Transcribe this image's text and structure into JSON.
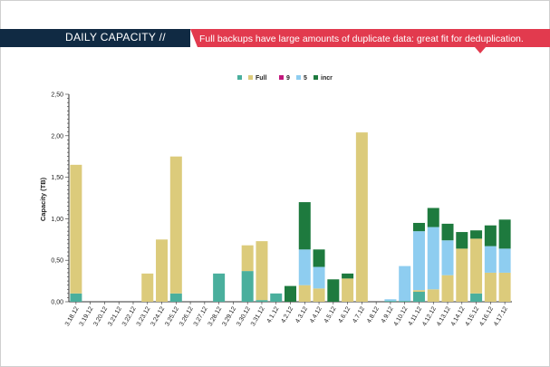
{
  "header": {
    "title": "DAILY CAPACITY //",
    "tagline": "Full backups have large amounts of duplicate data: great fit for deduplication."
  },
  "chart_data": {
    "type": "bar",
    "stacked": true,
    "ylabel": "Capacity (TB)",
    "xlabel": "",
    "ylim": [
      0,
      2.5
    ],
    "yticks": [
      "0,00",
      "0,50",
      "1,00",
      "1,50",
      "2,00",
      "2,50"
    ],
    "grid": false,
    "legend_position": "top-center",
    "legend": [
      "Full",
      "9",
      "5",
      "incr"
    ],
    "categories": [
      "3.18.12",
      "3.19.12",
      "3.20.12",
      "3.21.12",
      "3.22.12",
      "3.23.12",
      "3.24.12",
      "3.25.12",
      "3.26.12",
      "3.27.12",
      "3.28.12",
      "3.29.12",
      "3.30.12",
      "3.31.12",
      "4.1.12",
      "4.2.12",
      "4.3.12",
      "4.4.12",
      "4.5.12",
      "4.6.12",
      "4.7.12",
      "4.8.12",
      "4.9.12",
      "4.10.12",
      "4.11.12",
      "4.12.12",
      "4.13.12",
      "4.14.12",
      "4.15.12",
      "4.16.12",
      "4.17.12"
    ],
    "series": [
      {
        "name": "",
        "color": "#4aaf9d",
        "values": [
          0.1,
          0,
          0,
          0,
          0,
          0,
          0,
          0.1,
          0,
          0,
          0.34,
          0,
          0.37,
          0.02,
          0.1,
          0,
          0,
          0,
          0,
          0,
          0,
          0,
          0.01,
          0.01,
          0.12,
          0,
          0,
          0,
          0.1,
          0,
          0
        ]
      },
      {
        "name": "Full",
        "color": "#dccb7b",
        "values": [
          1.55,
          0,
          0,
          0,
          0,
          0.34,
          0.75,
          1.65,
          0,
          0,
          0,
          0,
          0.31,
          0.71,
          0,
          0,
          0.2,
          0.16,
          0,
          0.28,
          2.04,
          0,
          0,
          0,
          0.02,
          0.15,
          0.32,
          0.64,
          0.66,
          0.35,
          0.35
        ]
      },
      {
        "name": "9",
        "color": "#c2187d",
        "values": [
          0,
          0,
          0,
          0,
          0,
          0,
          0,
          0,
          0,
          0,
          0,
          0,
          0,
          0,
          0,
          0,
          0,
          0,
          0,
          0,
          0,
          0,
          0,
          0,
          0,
          0,
          0,
          0,
          0,
          0,
          0
        ]
      },
      {
        "name": "5",
        "color": "#8ecdf0",
        "values": [
          0,
          0,
          0,
          0,
          0,
          0,
          0,
          0,
          0,
          0,
          0,
          0,
          0,
          0,
          0,
          0,
          0.43,
          0.26,
          0,
          0,
          0,
          0,
          0.02,
          0.42,
          0.71,
          0.75,
          0.42,
          0,
          0,
          0.32,
          0.29
        ]
      },
      {
        "name": "incr",
        "color": "#1e7a3e",
        "values": [
          0,
          0,
          0,
          0,
          0,
          0,
          0,
          0,
          0,
          0,
          0,
          0,
          0,
          0,
          0,
          0.19,
          0.57,
          0.21,
          0.27,
          0.06,
          0,
          0,
          0,
          0,
          0.1,
          0.23,
          0.2,
          0.2,
          0.1,
          0.25,
          0.35
        ]
      }
    ]
  }
}
